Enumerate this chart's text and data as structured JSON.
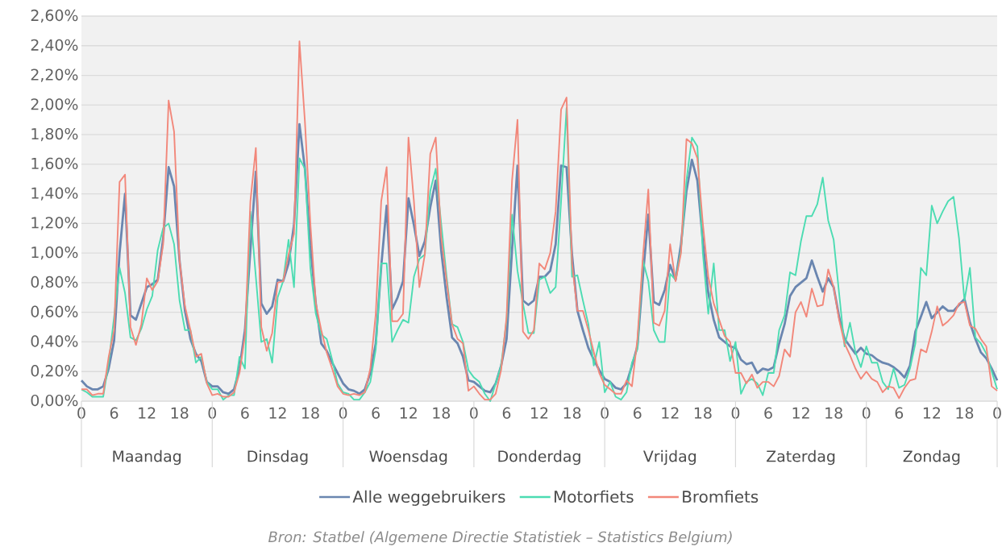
{
  "chart_data": {
    "type": "line",
    "categories": [
      "0",
      null,
      null,
      null,
      null,
      null,
      "6",
      null,
      null,
      null,
      null,
      null,
      "12",
      null,
      null,
      null,
      null,
      null,
      "18",
      null,
      null,
      null,
      null,
      null,
      "0",
      null,
      null,
      null,
      null,
      null,
      "6",
      null,
      null,
      null,
      null,
      null,
      "12",
      null,
      null,
      null,
      null,
      null,
      "18",
      null,
      null,
      null,
      null,
      null,
      "0",
      null,
      null,
      null,
      null,
      null,
      "6",
      null,
      null,
      null,
      null,
      null,
      "12",
      null,
      null,
      null,
      null,
      null,
      "18",
      null,
      null,
      null,
      null,
      null,
      "0",
      null,
      null,
      null,
      null,
      null,
      "6",
      null,
      null,
      null,
      null,
      null,
      "12",
      null,
      null,
      null,
      null,
      null,
      "18",
      null,
      null,
      null,
      null,
      null,
      "0",
      null,
      null,
      null,
      null,
      null,
      "6",
      null,
      null,
      null,
      null,
      null,
      "12",
      null,
      null,
      null,
      null,
      null,
      "18",
      null,
      null,
      null,
      null,
      null,
      "0",
      null,
      null,
      null,
      null,
      null,
      "6",
      null,
      null,
      null,
      null,
      null,
      "12",
      null,
      null,
      null,
      null,
      null,
      "18",
      null,
      null,
      null,
      null,
      null,
      "0",
      null,
      null,
      null,
      null,
      null,
      "6",
      null,
      null,
      null,
      null,
      null,
      "12",
      null,
      null,
      null,
      null,
      null,
      "18",
      null,
      null,
      null,
      null,
      null,
      "0"
    ],
    "series": [
      {
        "name": "Alle weggebruikers",
        "color": "#6a86b0",
        "values": [
          0.14,
          0.1,
          0.08,
          0.08,
          0.1,
          0.22,
          0.41,
          1.0,
          1.4,
          0.58,
          0.55,
          0.66,
          0.77,
          0.79,
          0.82,
          1.1,
          1.58,
          1.45,
          0.95,
          0.61,
          0.42,
          0.32,
          0.27,
          0.13,
          0.1,
          0.1,
          0.06,
          0.05,
          0.08,
          0.22,
          0.48,
          1.02,
          1.55,
          0.66,
          0.59,
          0.64,
          0.82,
          0.81,
          0.93,
          1.19,
          1.87,
          1.57,
          1.05,
          0.66,
          0.39,
          0.34,
          0.26,
          0.19,
          0.12,
          0.08,
          0.07,
          0.05,
          0.08,
          0.19,
          0.39,
          0.91,
          1.32,
          0.62,
          0.7,
          0.81,
          1.37,
          1.19,
          0.98,
          1.08,
          1.31,
          1.49,
          1.02,
          0.7,
          0.43,
          0.39,
          0.3,
          0.14,
          0.13,
          0.1,
          0.07,
          0.06,
          0.12,
          0.24,
          0.42,
          1.02,
          1.59,
          0.68,
          0.65,
          0.68,
          0.84,
          0.84,
          0.88,
          1.06,
          1.59,
          1.58,
          0.99,
          0.61,
          0.48,
          0.36,
          0.28,
          0.21,
          0.15,
          0.13,
          0.09,
          0.08,
          0.12,
          0.24,
          0.37,
          0.84,
          1.26,
          0.67,
          0.65,
          0.75,
          0.92,
          0.82,
          1.06,
          1.42,
          1.63,
          1.49,
          1.08,
          0.73,
          0.55,
          0.43,
          0.4,
          0.37,
          0.36,
          0.28,
          0.25,
          0.26,
          0.19,
          0.22,
          0.21,
          0.23,
          0.39,
          0.52,
          0.71,
          0.77,
          0.8,
          0.83,
          0.95,
          0.84,
          0.74,
          0.83,
          0.77,
          0.57,
          0.42,
          0.37,
          0.32,
          0.36,
          0.32,
          0.31,
          0.28,
          0.26,
          0.25,
          0.23,
          0.2,
          0.16,
          0.24,
          0.47,
          0.57,
          0.67,
          0.56,
          0.6,
          0.64,
          0.61,
          0.61,
          0.65,
          0.69,
          0.53,
          0.42,
          0.33,
          0.29,
          0.22,
          0.14
        ]
      },
      {
        "name": "Motorfiets",
        "color": "#4cdcb2",
        "values": [
          0.08,
          0.06,
          0.03,
          0.03,
          0.03,
          0.26,
          0.57,
          0.9,
          0.73,
          0.43,
          0.41,
          0.49,
          0.62,
          0.71,
          1.02,
          1.17,
          1.2,
          1.06,
          0.68,
          0.48,
          0.48,
          0.26,
          0.3,
          0.13,
          0.08,
          0.08,
          0.01,
          0.04,
          0.04,
          0.3,
          0.22,
          1.28,
          0.84,
          0.4,
          0.42,
          0.26,
          0.7,
          0.81,
          1.09,
          0.77,
          1.64,
          1.57,
          0.9,
          0.59,
          0.45,
          0.42,
          0.28,
          0.12,
          0.06,
          0.05,
          0.01,
          0.01,
          0.06,
          0.13,
          0.35,
          0.93,
          0.93,
          0.4,
          0.48,
          0.55,
          0.53,
          0.84,
          0.96,
          0.99,
          1.42,
          1.57,
          1.2,
          0.84,
          0.52,
          0.5,
          0.4,
          0.21,
          0.16,
          0.13,
          0.05,
          0.0,
          0.12,
          0.24,
          0.55,
          1.26,
          0.88,
          0.66,
          0.46,
          0.46,
          0.82,
          0.84,
          0.73,
          0.77,
          1.35,
          1.98,
          0.84,
          0.85,
          0.68,
          0.52,
          0.24,
          0.4,
          0.06,
          0.13,
          0.03,
          0.01,
          0.06,
          0.26,
          0.35,
          0.95,
          0.81,
          0.48,
          0.4,
          0.4,
          0.86,
          0.82,
          1.02,
          1.49,
          1.78,
          1.72,
          1.0,
          0.59,
          0.93,
          0.48,
          0.48,
          0.27,
          0.4,
          0.05,
          0.13,
          0.15,
          0.12,
          0.04,
          0.19,
          0.19,
          0.48,
          0.58,
          0.87,
          0.85,
          1.08,
          1.25,
          1.25,
          1.33,
          1.51,
          1.22,
          1.09,
          0.73,
          0.37,
          0.53,
          0.33,
          0.23,
          0.37,
          0.26,
          0.26,
          0.13,
          0.08,
          0.22,
          0.09,
          0.11,
          0.22,
          0.39,
          0.9,
          0.85,
          1.32,
          1.2,
          1.28,
          1.35,
          1.38,
          1.1,
          0.68,
          0.9,
          0.43,
          0.39,
          0.32,
          0.2,
          0.08
        ]
      },
      {
        "name": "Bromfiets",
        "color": "#f2877a",
        "values": [
          0.08,
          0.08,
          0.04,
          0.05,
          0.05,
          0.3,
          0.48,
          1.48,
          1.53,
          0.5,
          0.38,
          0.52,
          0.83,
          0.75,
          0.81,
          1.06,
          2.03,
          1.82,
          0.95,
          0.64,
          0.48,
          0.3,
          0.32,
          0.12,
          0.04,
          0.05,
          0.03,
          0.03,
          0.06,
          0.19,
          0.44,
          1.35,
          1.71,
          0.5,
          0.34,
          0.46,
          0.8,
          0.81,
          0.99,
          1.13,
          2.43,
          1.89,
          1.2,
          0.66,
          0.48,
          0.33,
          0.22,
          0.1,
          0.05,
          0.04,
          0.05,
          0.04,
          0.06,
          0.22,
          0.59,
          1.35,
          1.58,
          0.54,
          0.54,
          0.59,
          1.78,
          1.35,
          0.77,
          0.99,
          1.67,
          1.78,
          1.11,
          0.81,
          0.52,
          0.42,
          0.39,
          0.07,
          0.1,
          0.05,
          0.01,
          0.01,
          0.05,
          0.21,
          0.57,
          1.49,
          1.9,
          0.47,
          0.42,
          0.48,
          0.93,
          0.89,
          1.0,
          1.28,
          1.97,
          2.05,
          0.93,
          0.61,
          0.61,
          0.48,
          0.33,
          0.19,
          0.11,
          0.08,
          0.05,
          0.05,
          0.14,
          0.1,
          0.42,
          0.97,
          1.43,
          0.53,
          0.51,
          0.61,
          1.06,
          0.81,
          1.0,
          1.77,
          1.74,
          1.64,
          1.2,
          0.84,
          0.66,
          0.55,
          0.44,
          0.4,
          0.19,
          0.19,
          0.12,
          0.18,
          0.09,
          0.13,
          0.13,
          0.1,
          0.17,
          0.35,
          0.3,
          0.6,
          0.67,
          0.57,
          0.76,
          0.64,
          0.65,
          0.89,
          0.77,
          0.55,
          0.39,
          0.31,
          0.22,
          0.15,
          0.2,
          0.15,
          0.13,
          0.06,
          0.1,
          0.09,
          0.02,
          0.09,
          0.14,
          0.15,
          0.35,
          0.33,
          0.47,
          0.64,
          0.51,
          0.54,
          0.58,
          0.66,
          0.67,
          0.51,
          0.49,
          0.42,
          0.37,
          0.1,
          0.07
        ]
      }
    ],
    "ylim": [
      0,
      2.6
    ],
    "yticks": [
      {
        "value": 0,
        "label": "0,00%"
      },
      {
        "value": 0.2,
        "label": "0,20%"
      },
      {
        "value": 0.4,
        "label": "0,40%"
      },
      {
        "value": 0.6,
        "label": "0,60%"
      },
      {
        "value": 0.8,
        "label": "0,80%"
      },
      {
        "value": 1.0,
        "label": "1,00%"
      },
      {
        "value": 1.2,
        "label": "1,20%"
      },
      {
        "value": 1.4,
        "label": "1,40%"
      },
      {
        "value": 1.6,
        "label": "1,60%"
      },
      {
        "value": 1.8,
        "label": "1,80%"
      },
      {
        "value": 2.0,
        "label": "2,00%"
      },
      {
        "value": 2.2,
        "label": "2,20%"
      },
      {
        "value": 2.4,
        "label": "2,40%"
      },
      {
        "value": 2.6,
        "label": "2,60%"
      }
    ],
    "grid": "y",
    "legend": "bottom",
    "annotations": [
      "Maandag",
      "Dinsdag",
      "Woensdag",
      "Donderdag",
      "Vrijdag",
      "Zaterdag",
      "Zondag",
      "Bron: Statbel (Algemene Directie Statistiek – Statistics Belgium)"
    ]
  }
}
